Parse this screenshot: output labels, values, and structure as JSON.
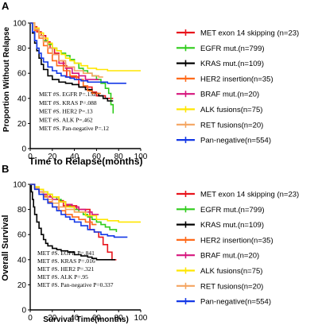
{
  "chart_data": [
    {
      "panel": "A",
      "type": "line",
      "xlabel": "Time to Relapse(months)",
      "ylabel": "Proportion Without Relapse",
      "xlim": [
        0,
        100
      ],
      "ylim": [
        0,
        100
      ],
      "xticks": [
        "0",
        "20",
        "40",
        "60",
        "80",
        "100"
      ],
      "yticks": [
        "0",
        "20",
        "40",
        "60",
        "80",
        "100"
      ],
      "annotations": [
        "MET #S. EGFR  P=.152",
        "MET #S. KRAS  P=.088",
        "MET #S. HER2  P=.13",
        "MET #S. ALK  P=.462",
        "MET #S. Pan-negative  P=.12"
      ],
      "series": [
        {
          "name": "MET exon 14 skipping (n=23)",
          "color": "#e8141c",
          "x": [
            0,
            4,
            6,
            10,
            14,
            18,
            22,
            26,
            30,
            33,
            42,
            44,
            50,
            56,
            60,
            64,
            68,
            72,
            75
          ],
          "y": [
            100,
            97,
            93,
            90,
            85,
            80,
            76,
            70,
            66,
            57,
            57,
            49,
            49,
            45,
            42,
            42,
            40,
            40,
            40
          ]
        },
        {
          "name": "EGFR mut.(n=799)",
          "color": "#2ecc1a",
          "x": [
            0,
            4,
            8,
            12,
            16,
            20,
            24,
            28,
            32,
            36,
            40,
            44,
            48,
            52,
            56,
            60,
            64,
            68,
            71,
            73,
            75
          ],
          "y": [
            100,
            95,
            90,
            86,
            83,
            80,
            78,
            76,
            74,
            71,
            68,
            64,
            62,
            60,
            58,
            55,
            52,
            48,
            44,
            35,
            28
          ]
        },
        {
          "name": "KRAS mut.(n=109)",
          "color": "#000000",
          "x": [
            0,
            2,
            4,
            6,
            8,
            10,
            12,
            16,
            20,
            26,
            32,
            38,
            44,
            50,
            56,
            62,
            66,
            70,
            75
          ],
          "y": [
            100,
            92,
            84,
            78,
            72,
            67,
            63,
            58,
            55,
            53,
            52,
            51,
            49,
            47,
            44,
            42,
            40,
            38,
            38
          ]
        },
        {
          "name": "HER2 insertion(n=35)",
          "color": "#ff6a1a",
          "x": [
            0,
            4,
            8,
            12,
            16,
            20,
            24,
            30,
            36,
            42,
            48,
            52,
            56,
            60,
            64
          ],
          "y": [
            100,
            94,
            88,
            82,
            76,
            70,
            66,
            62,
            58,
            55,
            50,
            46,
            44,
            44,
            44
          ]
        },
        {
          "name": "BRAF mut.(n=20)",
          "color": "#d6157d",
          "x": [
            0,
            4,
            8,
            12,
            16,
            20,
            26,
            32,
            38,
            44,
            50,
            56,
            62
          ],
          "y": [
            100,
            95,
            90,
            85,
            80,
            75,
            68,
            64,
            60,
            58,
            55,
            55,
            55
          ]
        },
        {
          "name": "ALK fusions(n=75)",
          "color": "#ffe600",
          "x": [
            0,
            4,
            8,
            12,
            16,
            20,
            24,
            28,
            32,
            36,
            40,
            46,
            52,
            60,
            70,
            80,
            90,
            100
          ],
          "y": [
            100,
            96,
            92,
            88,
            84,
            80,
            78,
            75,
            72,
            70,
            68,
            66,
            64,
            63,
            62,
            62,
            62,
            62
          ]
        },
        {
          "name": "RET fusions(n=20)",
          "color": "#f4a460",
          "x": [
            0,
            4,
            8,
            12,
            16,
            20,
            26,
            32,
            40,
            48,
            56,
            62,
            66
          ],
          "y": [
            100,
            95,
            90,
            85,
            80,
            75,
            70,
            65,
            62,
            60,
            58,
            57,
            57
          ]
        },
        {
          "name": "Pan-negative(n=554)",
          "color": "#1438e6",
          "x": [
            0,
            2,
            4,
            6,
            8,
            10,
            12,
            16,
            20,
            24,
            28,
            32,
            36,
            40,
            46,
            52,
            60,
            70,
            80,
            87
          ],
          "y": [
            100,
            93,
            86,
            80,
            76,
            72,
            69,
            65,
            62,
            60,
            58,
            57,
            56,
            55,
            54,
            53,
            53,
            52,
            52,
            52
          ]
        }
      ]
    },
    {
      "panel": "B",
      "type": "line",
      "xlabel": "Survival Time(months)",
      "ylabel": "Overall Survival",
      "xlim": [
        0,
        100
      ],
      "ylim": [
        0,
        100
      ],
      "xticks": [
        "0",
        "20",
        "40",
        "60",
        "80",
        "100"
      ],
      "yticks": [
        "0",
        "20",
        "40",
        "60",
        "80",
        "100"
      ],
      "annotations": [
        "MET #S. EGFR  P=.841",
        "MET #S. KRAS  P=.016",
        "MET #S. HER2  P=.321",
        "MET #S. ALK  P=.95",
        "MET #S. Pan-negative  P=0.337"
      ],
      "series": [
        {
          "name": "MET exon 14 skipping (n=23)",
          "color": "#e8141c",
          "x": [
            0,
            4,
            8,
            12,
            18,
            22,
            26,
            30,
            38,
            42,
            52,
            54,
            58,
            62,
            66,
            70,
            74,
            78
          ],
          "y": [
            100,
            97,
            94,
            92,
            90,
            90,
            87,
            83,
            83,
            80,
            80,
            64,
            62,
            58,
            52,
            46,
            40,
            40
          ]
        },
        {
          "name": "EGFR mut.(n=799)",
          "color": "#2ecc1a",
          "x": [
            0,
            4,
            8,
            12,
            16,
            20,
            24,
            28,
            32,
            36,
            40,
            44,
            48,
            52,
            56,
            60,
            64,
            68,
            72,
            78
          ],
          "y": [
            100,
            98,
            96,
            94,
            92,
            90,
            88,
            86,
            84,
            82,
            80,
            78,
            76,
            74,
            72,
            70,
            68,
            66,
            64,
            62
          ]
        },
        {
          "name": "KRAS mut.(n=109)",
          "color": "#000000",
          "x": [
            0,
            1,
            2,
            3,
            4,
            6,
            8,
            10,
            12,
            14,
            16,
            20,
            24,
            28,
            34,
            40,
            46,
            52,
            56,
            60,
            66,
            72,
            77
          ],
          "y": [
            100,
            94,
            88,
            82,
            76,
            70,
            65,
            60,
            56,
            53,
            51,
            49,
            48,
            47,
            46,
            44,
            43,
            42,
            41,
            40,
            40,
            40,
            40
          ]
        },
        {
          "name": "HER2 insertion(n=35)",
          "color": "#ff6a1a",
          "x": [
            0,
            4,
            8,
            12,
            16,
            20,
            26,
            32,
            38,
            44,
            50,
            56,
            60
          ],
          "y": [
            100,
            97,
            94,
            90,
            86,
            82,
            79,
            76,
            74,
            72,
            70,
            68,
            68
          ]
        },
        {
          "name": "BRAF mut.(n=20)",
          "color": "#d6157d",
          "x": [
            0,
            4,
            8,
            12,
            16,
            20,
            26,
            32,
            38,
            44,
            50,
            56,
            62
          ],
          "y": [
            100,
            97,
            94,
            92,
            90,
            88,
            86,
            84,
            82,
            80,
            78,
            76,
            76
          ]
        },
        {
          "name": "ALK fusions(n=75)",
          "color": "#ffe600",
          "x": [
            0,
            4,
            8,
            12,
            16,
            20,
            26,
            32,
            40,
            50,
            60,
            70,
            80,
            90,
            100
          ],
          "y": [
            100,
            98,
            96,
            94,
            92,
            90,
            86,
            82,
            78,
            75,
            72,
            71,
            70,
            70,
            70
          ]
        },
        {
          "name": "RET fusions(n=20)",
          "color": "#f4a460",
          "x": [
            0,
            4,
            8,
            12,
            16,
            20,
            26,
            32,
            40,
            46,
            52
          ],
          "y": [
            100,
            97,
            94,
            91,
            88,
            85,
            82,
            80,
            78,
            78,
            78
          ]
        },
        {
          "name": "Pan-negative(n=554)",
          "color": "#1438e6",
          "x": [
            0,
            4,
            8,
            12,
            16,
            20,
            24,
            28,
            32,
            36,
            40,
            46,
            52,
            58,
            64,
            70,
            76,
            82,
            88
          ],
          "y": [
            100,
            96,
            92,
            88,
            85,
            82,
            79,
            76,
            74,
            72,
            70,
            67,
            64,
            62,
            60,
            59,
            58,
            58,
            58
          ]
        }
      ]
    }
  ]
}
